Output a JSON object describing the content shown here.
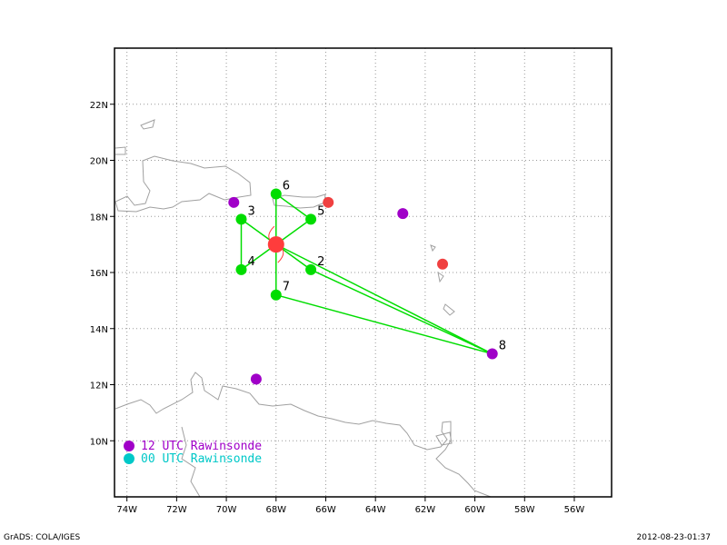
{
  "map": {
    "lon_range": [
      -74.5,
      -54.5
    ],
    "lat_range": [
      8,
      24
    ],
    "x_ticks": [
      {
        "lon": -74,
        "label": "74W"
      },
      {
        "lon": -72,
        "label": "72W"
      },
      {
        "lon": -70,
        "label": "70W"
      },
      {
        "lon": -68,
        "label": "68W"
      },
      {
        "lon": -66,
        "label": "66W"
      },
      {
        "lon": -64,
        "label": "64W"
      },
      {
        "lon": -62,
        "label": "62W"
      },
      {
        "lon": -60,
        "label": "60W"
      },
      {
        "lon": -58,
        "label": "58W"
      },
      {
        "lon": -56,
        "label": "56W"
      }
    ],
    "y_ticks": [
      {
        "lat": 10,
        "label": "10N"
      },
      {
        "lat": 12,
        "label": "12N"
      },
      {
        "lat": 14,
        "label": "14N"
      },
      {
        "lat": 16,
        "label": "16N"
      },
      {
        "lat": 18,
        "label": "18N"
      },
      {
        "lat": 20,
        "label": "20N"
      },
      {
        "lat": 22,
        "label": "22N"
      }
    ],
    "colors": {
      "track": "#00dd00",
      "center": "#ff3c3c",
      "red_marker": "#f04040",
      "rawinsonde_12": "#a000c8",
      "rawinsonde_00": "#00c8c8",
      "coast": "#a0a0a0"
    },
    "center": {
      "lon": -68.0,
      "lat": 17.0
    },
    "track_points": [
      {
        "label": "2",
        "lon": -66.6,
        "lat": 16.1
      },
      {
        "label": "3",
        "lon": -69.4,
        "lat": 17.9
      },
      {
        "label": "4",
        "lon": -69.4,
        "lat": 16.1
      },
      {
        "label": "5",
        "lon": -66.6,
        "lat": 17.9
      },
      {
        "label": "6",
        "lon": -68.0,
        "lat": 18.8
      },
      {
        "label": "7",
        "lon": -68.0,
        "lat": 15.2
      },
      {
        "label": "8",
        "lon": -59.3,
        "lat": 13.1
      }
    ],
    "red_markers": [
      {
        "lon": -65.9,
        "lat": 18.5
      },
      {
        "lon": -61.3,
        "lat": 16.3
      }
    ],
    "rawinsonde_12_points": [
      {
        "lon": -69.7,
        "lat": 18.5
      },
      {
        "lon": -62.9,
        "lat": 18.1
      },
      {
        "lon": -59.3,
        "lat": 13.1
      },
      {
        "lon": -68.8,
        "lat": 12.2
      }
    ]
  },
  "legend": {
    "item1": "12 UTC Rawinsonde",
    "item2": "00 UTC Rawinsonde"
  },
  "footer": {
    "left": "GrADS: COLA/IGES",
    "right": "2012-08-23-01:37"
  }
}
